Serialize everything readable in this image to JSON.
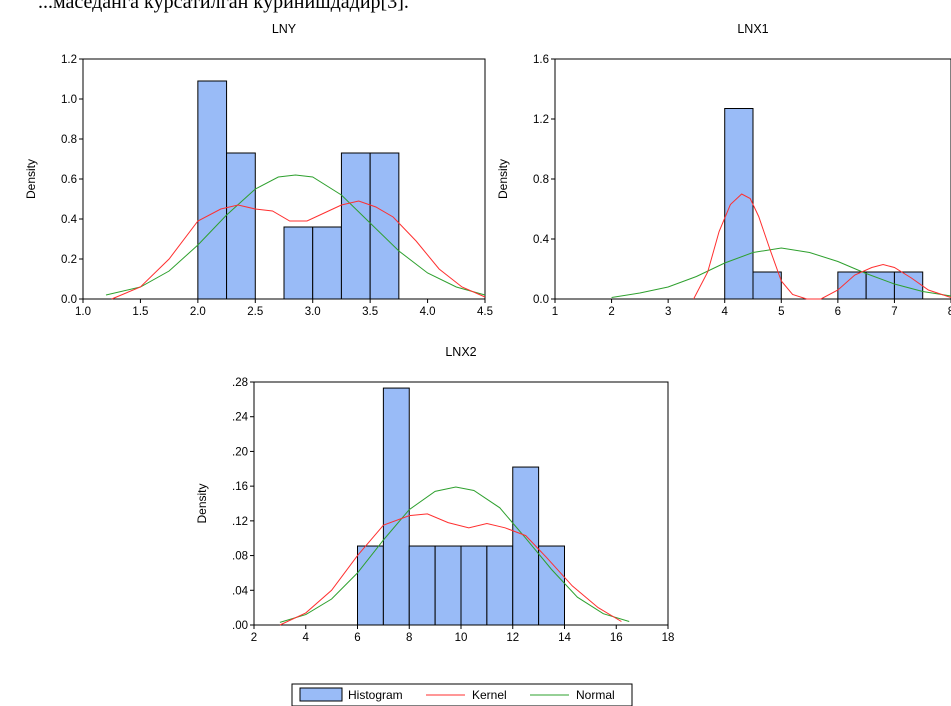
{
  "top_text": "...маседанга кўрсатилган кўринишдадир[3].",
  "colors": {
    "histogram": "#99bbf7",
    "kernel": "#ff2f2f",
    "normal": "#2ea02e"
  },
  "legend": {
    "histogram": "Histogram",
    "kernel": "Kernel",
    "normal": "Normal"
  },
  "chart_data": [
    {
      "type": "bar",
      "title": "LNY",
      "ylabel": "Density",
      "xlim": [
        1.0,
        4.5
      ],
      "ylim": [
        0.0,
        1.2
      ],
      "xticks": [
        "1.0",
        "1.5",
        "2.0",
        "2.5",
        "3.0",
        "3.5",
        "4.0",
        "4.5"
      ],
      "yticks": [
        "0.0",
        "0.2",
        "0.4",
        "0.6",
        "0.8",
        "1.0",
        "1.2"
      ],
      "bins": [
        [
          2.0,
          2.25
        ],
        [
          2.25,
          2.5
        ],
        [
          2.5,
          2.75
        ],
        [
          2.75,
          3.0
        ],
        [
          3.0,
          3.25
        ],
        [
          3.25,
          3.5
        ],
        [
          3.5,
          3.75
        ]
      ],
      "values": [
        1.09,
        0.73,
        0.0,
        0.36,
        0.36,
        0.73,
        0.73
      ],
      "kernel": [
        [
          1.25,
          0.0
        ],
        [
          1.5,
          0.06
        ],
        [
          1.75,
          0.2
        ],
        [
          2.0,
          0.39
        ],
        [
          2.2,
          0.45
        ],
        [
          2.35,
          0.47
        ],
        [
          2.5,
          0.45
        ],
        [
          2.65,
          0.44
        ],
        [
          2.8,
          0.39
        ],
        [
          2.95,
          0.39
        ],
        [
          3.1,
          0.43
        ],
        [
          3.25,
          0.47
        ],
        [
          3.4,
          0.49
        ],
        [
          3.55,
          0.46
        ],
        [
          3.7,
          0.41
        ],
        [
          3.9,
          0.29
        ],
        [
          4.1,
          0.15
        ],
        [
          4.3,
          0.06
        ],
        [
          4.5,
          0.01
        ]
      ],
      "normal": [
        [
          1.2,
          0.02
        ],
        [
          1.5,
          0.06
        ],
        [
          1.75,
          0.14
        ],
        [
          2.0,
          0.27
        ],
        [
          2.25,
          0.42
        ],
        [
          2.5,
          0.55
        ],
        [
          2.7,
          0.61
        ],
        [
          2.85,
          0.62
        ],
        [
          3.0,
          0.61
        ],
        [
          3.25,
          0.52
        ],
        [
          3.5,
          0.38
        ],
        [
          3.75,
          0.24
        ],
        [
          4.0,
          0.13
        ],
        [
          4.25,
          0.06
        ],
        [
          4.5,
          0.02
        ]
      ]
    },
    {
      "type": "bar",
      "title": "LNX1",
      "ylabel": "Density",
      "xlim": [
        1,
        8
      ],
      "ylim": [
        0.0,
        1.6
      ],
      "xticks": [
        "1",
        "2",
        "3",
        "4",
        "5",
        "6",
        "7",
        "8"
      ],
      "yticks": [
        "0.0",
        "0.4",
        "0.8",
        "1.2",
        "1.6"
      ],
      "bins": [
        [
          4.0,
          4.5
        ],
        [
          4.5,
          5.0
        ],
        [
          5.0,
          5.5
        ],
        [
          5.5,
          6.0
        ],
        [
          6.0,
          6.5
        ],
        [
          6.5,
          7.0
        ],
        [
          7.0,
          7.5
        ]
      ],
      "values": [
        1.27,
        0.18,
        0.0,
        0.0,
        0.18,
        0.18,
        0.18
      ],
      "kernel": [
        [
          3.45,
          0.0
        ],
        [
          3.7,
          0.18
        ],
        [
          3.9,
          0.45
        ],
        [
          4.1,
          0.63
        ],
        [
          4.3,
          0.7
        ],
        [
          4.45,
          0.67
        ],
        [
          4.6,
          0.55
        ],
        [
          4.8,
          0.33
        ],
        [
          5.0,
          0.12
        ],
        [
          5.2,
          0.03
        ],
        [
          5.45,
          0.0
        ],
        [
          5.7,
          0.0
        ],
        [
          6.0,
          0.06
        ],
        [
          6.3,
          0.16
        ],
        [
          6.6,
          0.21
        ],
        [
          6.8,
          0.23
        ],
        [
          7.0,
          0.21
        ],
        [
          7.3,
          0.14
        ],
        [
          7.6,
          0.06
        ],
        [
          8.0,
          0.01
        ]
      ],
      "normal": [
        [
          2.0,
          0.01
        ],
        [
          2.5,
          0.04
        ],
        [
          3.0,
          0.08
        ],
        [
          3.5,
          0.15
        ],
        [
          4.0,
          0.24
        ],
        [
          4.5,
          0.31
        ],
        [
          5.0,
          0.34
        ],
        [
          5.5,
          0.31
        ],
        [
          6.0,
          0.25
        ],
        [
          6.5,
          0.17
        ],
        [
          7.0,
          0.1
        ],
        [
          7.5,
          0.05
        ],
        [
          8.0,
          0.02
        ]
      ]
    },
    {
      "type": "bar",
      "title": "LNX2",
      "ylabel": "Density",
      "xlim": [
        2,
        18
      ],
      "ylim": [
        0.0,
        0.28
      ],
      "xticks": [
        "2",
        "4",
        "6",
        "8",
        "10",
        "12",
        "14",
        "16",
        "18"
      ],
      "yticks": [
        ".00",
        ".04",
        ".08",
        ".12",
        ".16",
        ".20",
        ".24",
        ".28"
      ],
      "bins": [
        [
          6,
          7
        ],
        [
          7,
          8
        ],
        [
          8,
          9
        ],
        [
          9,
          10
        ],
        [
          10,
          11
        ],
        [
          11,
          12
        ],
        [
          12,
          13
        ],
        [
          13,
          14
        ]
      ],
      "values": [
        0.091,
        0.273,
        0.091,
        0.091,
        0.091,
        0.091,
        0.182,
        0.091
      ],
      "kernel": [
        [
          3.0,
          0.0
        ],
        [
          4.0,
          0.014
        ],
        [
          5.0,
          0.04
        ],
        [
          6.0,
          0.08
        ],
        [
          7.0,
          0.115
        ],
        [
          8.0,
          0.126
        ],
        [
          8.7,
          0.128
        ],
        [
          9.5,
          0.118
        ],
        [
          10.3,
          0.112
        ],
        [
          11.0,
          0.117
        ],
        [
          11.7,
          0.112
        ],
        [
          12.5,
          0.103
        ],
        [
          13.3,
          0.078
        ],
        [
          14.3,
          0.045
        ],
        [
          15.3,
          0.02
        ],
        [
          16.2,
          0.004
        ]
      ],
      "normal": [
        [
          3.0,
          0.003
        ],
        [
          4.0,
          0.012
        ],
        [
          5.0,
          0.03
        ],
        [
          6.0,
          0.06
        ],
        [
          7.0,
          0.098
        ],
        [
          8.0,
          0.133
        ],
        [
          9.0,
          0.154
        ],
        [
          9.8,
          0.159
        ],
        [
          10.5,
          0.155
        ],
        [
          11.5,
          0.135
        ],
        [
          12.5,
          0.1
        ],
        [
          13.5,
          0.064
        ],
        [
          14.5,
          0.032
        ],
        [
          15.5,
          0.013
        ],
        [
          16.5,
          0.004
        ]
      ]
    }
  ]
}
